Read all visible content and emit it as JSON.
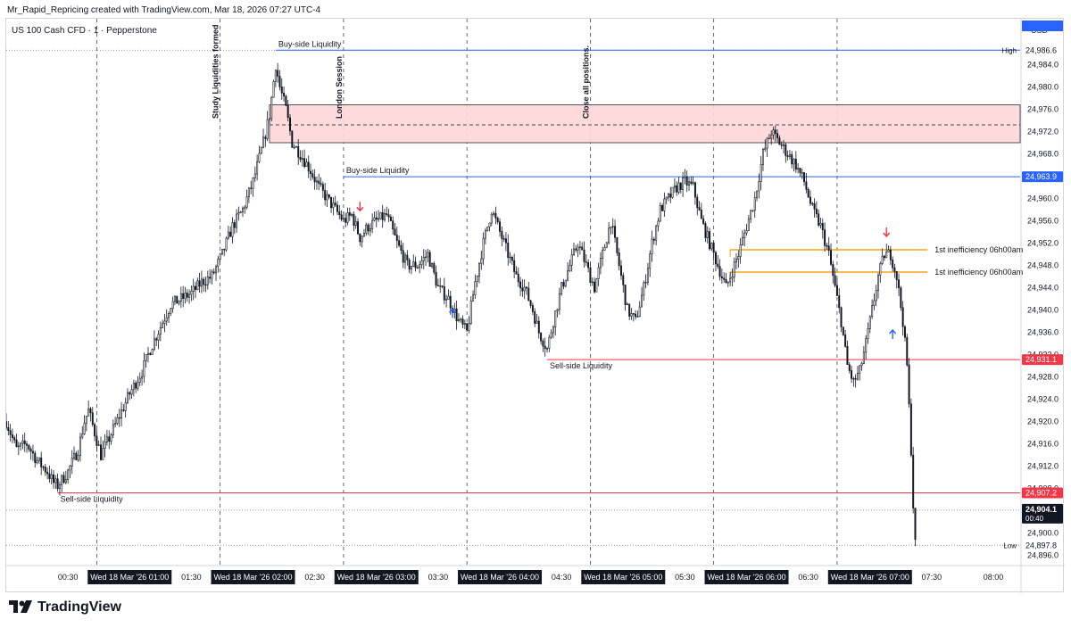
{
  "header": {
    "text": "Mr_Rapid_Repricing created with TradingView.com, Mar 18, 2026 07:27 UTC-4"
  },
  "brand": {
    "name": "TradingView",
    "icon": "tradingview-logo-icon"
  },
  "colors": {
    "blue": "#2962ff",
    "red": "#f23645",
    "orange": "#f7a21a",
    "zone": "#ffd7d9",
    "candle": "#131722"
  },
  "chart_data": {
    "type": "candlestick",
    "instrument": "US 100 Cash CFD · 1 · Pepperstone",
    "currency": "USD",
    "ylim": [
      24894,
      24990
    ],
    "y_ticks": [
      "24,984.0",
      "24,980.0",
      "24,976.0",
      "24,972.0",
      "24,968.0",
      "24,964.0",
      "24,960.0",
      "24,956.0",
      "24,952.0",
      "24,948.0",
      "24,944.0",
      "24,940.0",
      "24,936.0",
      "24,932.0",
      "24,928.0",
      "24,924.0",
      "24,920.0",
      "24,916.0",
      "24,912.0",
      "24,908.0",
      "24,904.0",
      "24,900.0",
      "24,896.0"
    ],
    "y_tick_values": [
      24984,
      24980,
      24976,
      24972,
      24968,
      24964,
      24960,
      24956,
      24952,
      24948,
      24944,
      24940,
      24936,
      24932,
      24928,
      24924,
      24920,
      24916,
      24912,
      24908,
      24904,
      24900,
      24896
    ],
    "x_start": "00:00",
    "x_end_minutes": 493,
    "x_ticks": [
      {
        "t": 30,
        "label": "00:30",
        "hl": false
      },
      {
        "t": 60,
        "label": "Wed 18 Mar '26  01:00",
        "hl": true
      },
      {
        "t": 90,
        "label": "01:30",
        "hl": false
      },
      {
        "t": 120,
        "label": "Wed 18 Mar '26  02:00",
        "hl": true
      },
      {
        "t": 150,
        "label": "02:30",
        "hl": false
      },
      {
        "t": 180,
        "label": "Wed 18 Mar '26  03:00",
        "hl": true
      },
      {
        "t": 210,
        "label": "03:30",
        "hl": false
      },
      {
        "t": 240,
        "label": "Wed 18 Mar '26  04:00",
        "hl": true
      },
      {
        "t": 270,
        "label": "04:30",
        "hl": false
      },
      {
        "t": 300,
        "label": "Wed 18 Mar '26  05:00",
        "hl": true
      },
      {
        "t": 330,
        "label": "05:30",
        "hl": false
      },
      {
        "t": 360,
        "label": "Wed 18 Mar '26  06:00",
        "hl": true
      },
      {
        "t": 390,
        "label": "06:30",
        "hl": false
      },
      {
        "t": 420,
        "label": "Wed 18 Mar '26  07:00",
        "hl": true
      },
      {
        "t": 450,
        "label": "07:30",
        "hl": false
      },
      {
        "t": 480,
        "label": "08:00",
        "hl": false
      }
    ],
    "session_lines_t": [
      44,
      104,
      164,
      224,
      284,
      344,
      404
    ],
    "vertical_annotations": [
      {
        "t": 104,
        "text": "Study Liquidities formed"
      },
      {
        "t": 164,
        "text": "London Session"
      },
      {
        "t": 284,
        "text": "Close all positions."
      }
    ],
    "horizontal_lines": [
      {
        "t0": 131,
        "y": 24986.6,
        "color": "blue",
        "label": "Buy-side Liquidity",
        "tag": "24,986.6",
        "tag_style": "plain",
        "side_label": "High"
      },
      {
        "t0": 164,
        "y": 24963.9,
        "color": "blue",
        "label": "Buy-side Liquidity",
        "tag": "24,963.9",
        "tag_style": "blue"
      },
      {
        "t0": 263,
        "y": 24931.1,
        "color": "red",
        "label": "Sell-side Liquidity",
        "tag": "24,931.1",
        "tag_style": "red"
      },
      {
        "t0": 25,
        "y": 24907.2,
        "color": "red",
        "label": "Sell-side Liquidity",
        "tag": "24,907.2",
        "tag_style": "red"
      }
    ],
    "low_line": {
      "y": 24897.8,
      "tag": "24,897.8",
      "side_label": "Low"
    },
    "last_price": {
      "y": 24904.1,
      "tag": "24,904.1",
      "countdown": "00:40"
    },
    "zone": {
      "t0": 128,
      "y_top": 24976.8,
      "y_bottom": 24970.0,
      "y_mid": 24973.2
    },
    "fvg_lines": [
      {
        "t0": 352,
        "t1": 448,
        "y": 24950.8,
        "label": "1st inefficiency 06h00am"
      },
      {
        "t0": 352,
        "t1": 448,
        "y": 24946.8,
        "label": "1st inefficiency 06h00am"
      }
    ],
    "arrows": [
      {
        "t": 172,
        "y": 24958.6,
        "dir": "down"
      },
      {
        "t": 217,
        "y": 24939.4,
        "dir": "up"
      },
      {
        "t": 428,
        "y": 24954.0,
        "dir": "down"
      },
      {
        "t": 431,
        "y": 24935.6,
        "dir": "up"
      }
    ],
    "price_path": [
      [
        0,
        24920
      ],
      [
        3,
        24917
      ],
      [
        5,
        24915
      ],
      [
        10,
        24916
      ],
      [
        15,
        24913
      ],
      [
        20,
        24911
      ],
      [
        23,
        24909
      ],
      [
        25,
        24908.5
      ],
      [
        30,
        24911
      ],
      [
        35,
        24915
      ],
      [
        38,
        24920
      ],
      [
        40,
        24922
      ],
      [
        43,
        24918
      ],
      [
        46,
        24914
      ],
      [
        50,
        24917
      ],
      [
        55,
        24921
      ],
      [
        60,
        24925
      ],
      [
        66,
        24929
      ],
      [
        70,
        24933
      ],
      [
        75,
        24937
      ],
      [
        80,
        24941
      ],
      [
        85,
        24942
      ],
      [
        90,
        24943
      ],
      [
        95,
        24945
      ],
      [
        100,
        24946
      ],
      [
        105,
        24950
      ],
      [
        110,
        24955
      ],
      [
        115,
        24958
      ],
      [
        120,
        24963
      ],
      [
        125,
        24970
      ],
      [
        128,
        24975
      ],
      [
        131,
        24984
      ],
      [
        133,
        24980
      ],
      [
        136,
        24976
      ],
      [
        139,
        24970
      ],
      [
        143,
        24968
      ],
      [
        148,
        24965
      ],
      [
        152,
        24962
      ],
      [
        156,
        24960
      ],
      [
        160,
        24958
      ],
      [
        164,
        24956
      ],
      [
        168,
        24957
      ],
      [
        172,
        24953
      ],
      [
        176,
        24955
      ],
      [
        180,
        24956
      ],
      [
        185,
        24957
      ],
      [
        190,
        24952
      ],
      [
        195,
        24948
      ],
      [
        200,
        24948
      ],
      [
        205,
        24950
      ],
      [
        210,
        24944
      ],
      [
        215,
        24942
      ],
      [
        220,
        24938
      ],
      [
        224,
        24936
      ],
      [
        228,
        24945
      ],
      [
        232,
        24952
      ],
      [
        236,
        24958
      ],
      [
        240,
        24954
      ],
      [
        244,
        24950
      ],
      [
        248,
        24946
      ],
      [
        252,
        24944
      ],
      [
        256,
        24940
      ],
      [
        259,
        24936
      ],
      [
        263,
        24933
      ],
      [
        266,
        24938
      ],
      [
        270,
        24944
      ],
      [
        274,
        24948
      ],
      [
        278,
        24952
      ],
      [
        282,
        24948
      ],
      [
        286,
        24944
      ],
      [
        290,
        24950
      ],
      [
        294,
        24956
      ],
      [
        298,
        24948
      ],
      [
        302,
        24940
      ],
      [
        306,
        24938
      ],
      [
        310,
        24944
      ],
      [
        314,
        24952
      ],
      [
        318,
        24958
      ],
      [
        322,
        24960
      ],
      [
        326,
        24962
      ],
      [
        330,
        24963
      ],
      [
        334,
        24962
      ],
      [
        338,
        24956
      ],
      [
        342,
        24952
      ],
      [
        346,
        24948
      ],
      [
        350,
        24944
      ],
      [
        352,
        24946
      ],
      [
        356,
        24950
      ],
      [
        360,
        24955
      ],
      [
        364,
        24960
      ],
      [
        368,
        24968
      ],
      [
        372,
        24972
      ],
      [
        376,
        24970
      ],
      [
        380,
        24968
      ],
      [
        384,
        24966
      ],
      [
        388,
        24963
      ],
      [
        392,
        24958
      ],
      [
        396,
        24955
      ],
      [
        400,
        24950
      ],
      [
        403,
        24944
      ],
      [
        406,
        24938
      ],
      [
        409,
        24930
      ],
      [
        412,
        24927
      ],
      [
        415,
        24929
      ],
      [
        418,
        24934
      ],
      [
        421,
        24940
      ],
      [
        424,
        24946
      ],
      [
        427,
        24950
      ],
      [
        430,
        24950
      ],
      [
        433,
        24946
      ],
      [
        436,
        24938
      ],
      [
        438,
        24930
      ],
      [
        440,
        24915
      ],
      [
        441,
        24905
      ],
      [
        442,
        24898
      ]
    ]
  }
}
